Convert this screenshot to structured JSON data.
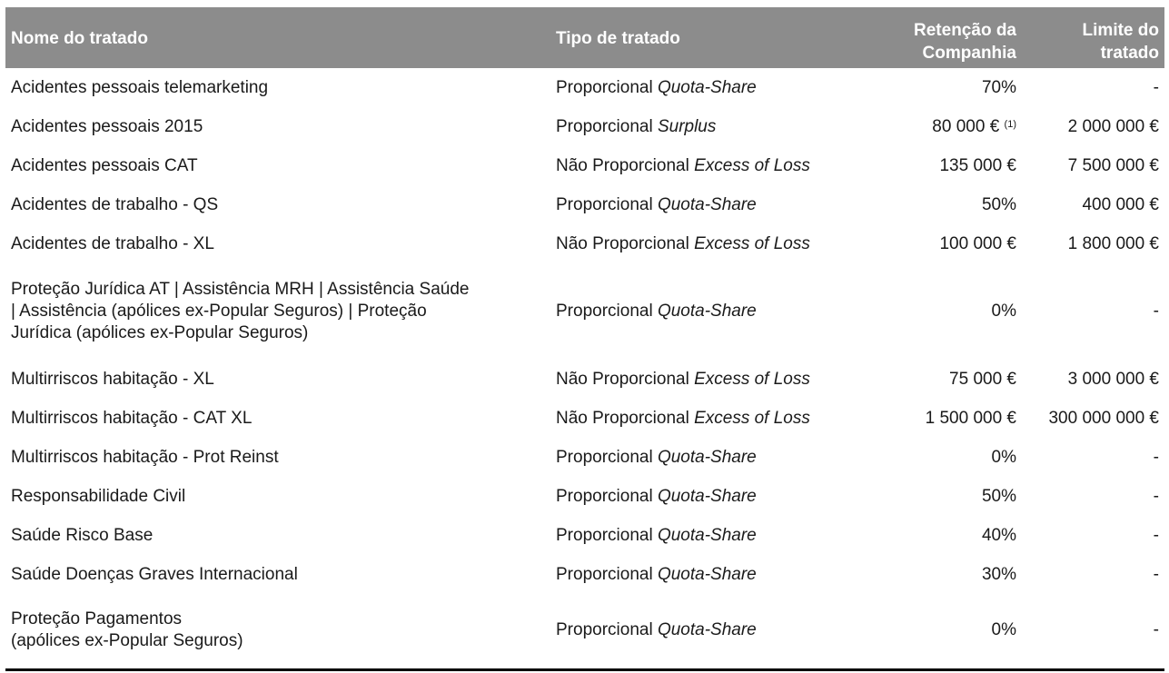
{
  "table": {
    "headers": {
      "name": "Nome do tratado",
      "type": "Tipo de tratado",
      "retention_line1": "Retenção da",
      "retention_line2": "Companhia",
      "limit_line1": "Limite do",
      "limit_line2": "tratado"
    },
    "rows": [
      {
        "name": [
          "Acidentes pessoais telemarketing"
        ],
        "type_prefix": "Proporcional",
        "type_italic": "Quota-Share",
        "retention": "70%",
        "retention_note": "",
        "limit": "-"
      },
      {
        "name": [
          "Acidentes pessoais 2015"
        ],
        "type_prefix": "Proporcional",
        "type_italic": "Surplus",
        "retention": "80 000 €",
        "retention_note": "(1)",
        "limit": "2 000 000 €"
      },
      {
        "name": [
          "Acidentes pessoais CAT"
        ],
        "type_prefix": "Não Proporcional",
        "type_italic": "Excess of Loss",
        "retention": "135 000 €",
        "retention_note": "",
        "limit": "7 500 000 €"
      },
      {
        "name": [
          "Acidentes de trabalho - QS"
        ],
        "type_prefix": "Proporcional",
        "type_italic": "Quota-Share",
        "retention": "50%",
        "retention_note": "",
        "limit": "400 000 €"
      },
      {
        "name": [
          "Acidentes de trabalho - XL"
        ],
        "type_prefix": "Não Proporcional",
        "type_italic": "Excess of Loss",
        "retention": "100 000 €",
        "retention_note": "",
        "limit": "1 800 000 €"
      },
      {
        "name": [
          "Proteção Jurídica AT | Assistência MRH | Assistência Saúde",
          "| Assistência (apólices ex-Popular Seguros) | Proteção",
          "Jurídica (apólices ex-Popular Seguros)"
        ],
        "type_prefix": "Proporcional",
        "type_italic": "Quota-Share",
        "retention": "0%",
        "retention_note": "",
        "limit": "-"
      },
      {
        "name": [
          "Multirriscos habitação - XL"
        ],
        "type_prefix": "Não Proporcional",
        "type_italic": "Excess of Loss",
        "retention": "75 000 €",
        "retention_note": "",
        "limit": "3 000 000 €"
      },
      {
        "name": [
          "Multirriscos habitação - CAT XL"
        ],
        "type_prefix": "Não Proporcional",
        "type_italic": "Excess of Loss",
        "retention": "1 500 000 €",
        "retention_note": "",
        "limit": "300 000 000 €"
      },
      {
        "name": [
          "Multirriscos habitação - Prot Reinst"
        ],
        "type_prefix": "Proporcional",
        "type_italic": "Quota-Share",
        "retention": "0%",
        "retention_note": "",
        "limit": "-"
      },
      {
        "name": [
          "Responsabilidade Civil"
        ],
        "type_prefix": "Proporcional",
        "type_italic": "Quota-Share",
        "retention": "50%",
        "retention_note": "",
        "limit": "-"
      },
      {
        "name": [
          "Saúde Risco Base"
        ],
        "type_prefix": "Proporcional",
        "type_italic": "Quota-Share",
        "retention": "40%",
        "retention_note": "",
        "limit": "-"
      },
      {
        "name": [
          "Saúde Doenças Graves Internacional"
        ],
        "type_prefix": "Proporcional",
        "type_italic": "Quota-Share",
        "retention": "30%",
        "retention_note": "",
        "limit": "-"
      },
      {
        "name": [
          "Proteção Pagamentos",
          "(apólices ex-Popular Seguros)"
        ],
        "type_prefix": "Proporcional",
        "type_italic": "Quota-Share",
        "retention": "0%",
        "retention_note": "",
        "limit": "-"
      }
    ]
  }
}
